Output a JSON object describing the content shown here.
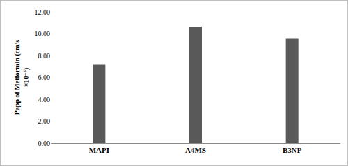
{
  "chart_data": {
    "type": "bar",
    "y_label": "Papp of Metformin (cm/s ×10⁻⁵)",
    "categories": [
      "MAPI",
      "A4MS",
      "B3NP"
    ],
    "values": [
      7.2,
      10.6,
      9.55
    ],
    "color": "#595959",
    "ylim": [
      0,
      12
    ],
    "yticks": [
      {
        "value": 0,
        "label": "0.00"
      },
      {
        "value": 2,
        "label": "2.00"
      },
      {
        "value": 4,
        "label": "4.00"
      },
      {
        "value": 6,
        "label": "6.00"
      },
      {
        "value": 8,
        "label": "8.00"
      },
      {
        "value": 10,
        "label": "10.00"
      },
      {
        "value": 12,
        "label": "12.00"
      }
    ],
    "grid": false
  }
}
